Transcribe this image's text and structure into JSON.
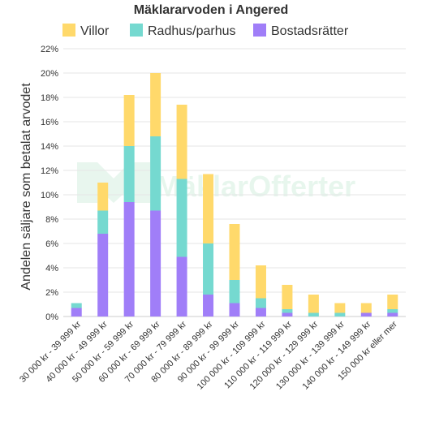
{
  "chart_data": {
    "type": "bar",
    "stacked": true,
    "title": "Mäklararvoden i Angered",
    "ylabel": "Andelen säljare som betalat arvodet",
    "xlabel": "",
    "ylim": [
      0,
      22
    ],
    "ytick_step": 2,
    "ytick_suffix": "%",
    "grid": true,
    "legend_position": "top",
    "watermark": "MäklarOfferter",
    "categories": [
      "30 000 kr - 39 999 kr",
      "40 000 kr - 49 999 kr",
      "50 000 kr - 59 999 kr",
      "60 000 kr - 69 999 kr",
      "70 000 kr - 79 999 kr",
      "80 000 kr - 89 999 kr",
      "90 000 kr - 99 999 kr",
      "100 000 kr - 109 999 kr",
      "110 000 kr - 119 999 kr",
      "120 000 kr - 129 999 kr",
      "130 000 kr - 139 999 kr",
      "140 000 kr - 149 999 kr",
      "150 000 kr eller mer"
    ],
    "series": [
      {
        "name": "Bostadsrätter",
        "color": "#a07ef8",
        "values": [
          0.7,
          6.8,
          9.4,
          8.7,
          4.9,
          1.8,
          1.1,
          0.7,
          0.3,
          0.0,
          0.0,
          0.3,
          0.3
        ]
      },
      {
        "name": "Radhus/parhus",
        "color": "#75d9d0",
        "values": [
          0.4,
          1.9,
          4.6,
          6.1,
          6.4,
          4.2,
          1.9,
          0.8,
          0.3,
          0.3,
          0.3,
          0.0,
          0.3
        ]
      },
      {
        "name": "Villor",
        "color": "#ffd96b",
        "values": [
          0.0,
          2.3,
          4.2,
          5.2,
          6.1,
          5.7,
          4.6,
          2.7,
          2.0,
          1.5,
          0.8,
          0.8,
          1.2
        ]
      }
    ],
    "legend_order": [
      "Villor",
      "Radhus/parhus",
      "Bostadsrätter"
    ]
  }
}
